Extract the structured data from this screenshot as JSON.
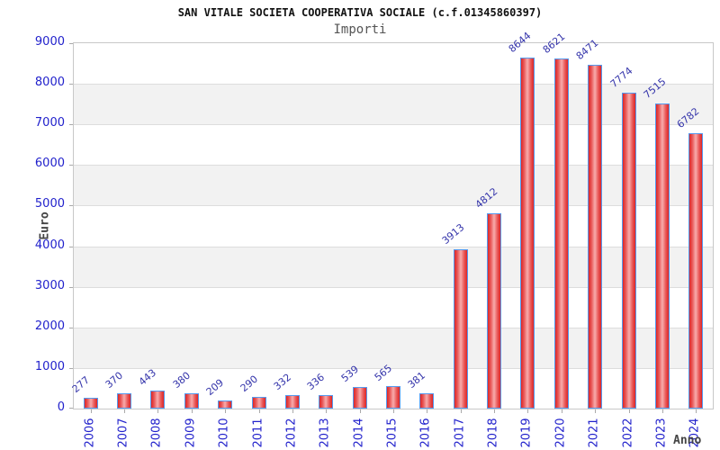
{
  "header": {
    "title": "SAN VITALE SOCIETA COOPERATIVA SOCIALE (c.f.01345860397)",
    "subtitle": "Importi"
  },
  "chart_data": {
    "type": "bar",
    "title": "SAN VITALE SOCIETA COOPERATIVA SOCIALE (c.f.01345860397)",
    "subtitle": "Importi",
    "xlabel": "Anno",
    "ylabel": "Euro",
    "categories": [
      "2006",
      "2007",
      "2008",
      "2009",
      "2010",
      "2011",
      "2012",
      "2013",
      "2014",
      "2015",
      "2016",
      "2017",
      "2018",
      "2019",
      "2020",
      "2021",
      "2022",
      "2023",
      "2024"
    ],
    "values": [
      277,
      370,
      443,
      380,
      209,
      290,
      332,
      336,
      539,
      565,
      381,
      3913,
      4812,
      8644,
      8621,
      8471,
      7774,
      7515,
      6782
    ],
    "ylim": [
      0,
      9000
    ],
    "yticks": [
      0,
      1000,
      2000,
      3000,
      4000,
      5000,
      6000,
      7000,
      8000,
      9000
    ],
    "grid": "alternating horizontal bands every 1000, gray bands 1000-2000/3000-4000/5000-6000/7000-8000",
    "legend": "none",
    "colors": {
      "bar_edge": "#dd2626",
      "bar_center": "#f8acac",
      "bar_border": "#5599ee",
      "tick_label": "#2222cc",
      "value_label": "#3333aa",
      "band": "#f2f2f2",
      "gridline": "#dddddd",
      "axis_text": "#444444",
      "title_text": "#111111",
      "subtitle_text": "#555555"
    }
  }
}
